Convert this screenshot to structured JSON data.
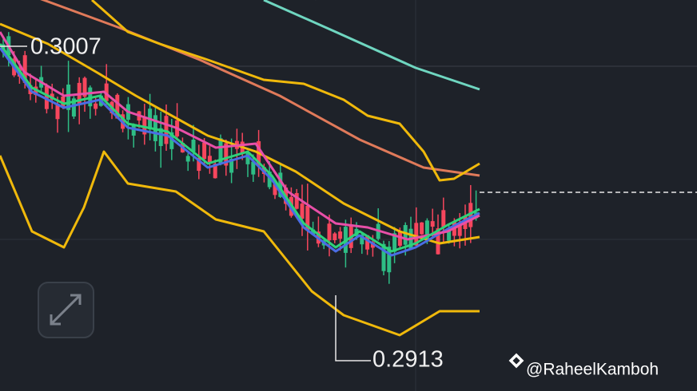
{
  "price_labels": {
    "high": "0.3007",
    "low": "0.2913"
  },
  "watermark": "@RaheelKamboh"
}
